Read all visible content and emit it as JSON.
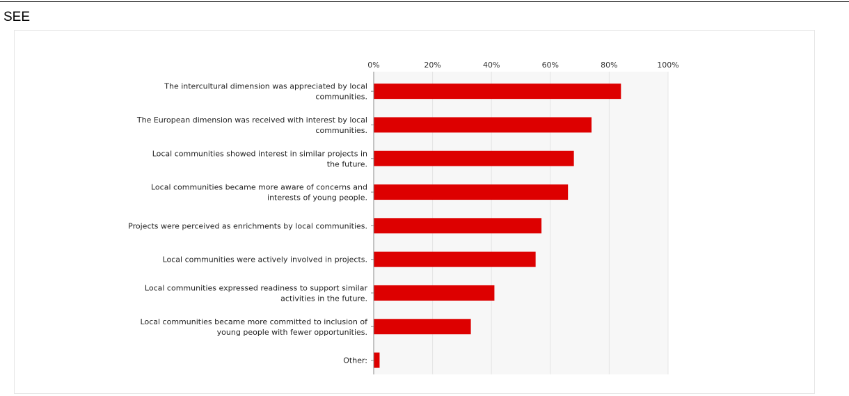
{
  "page": {
    "section_label": "SEE"
  },
  "chart_data": {
    "type": "bar",
    "orientation": "horizontal",
    "title": "",
    "xlabel": "",
    "ylabel": "",
    "xlim": [
      0,
      100
    ],
    "x_ticks": [
      "0%",
      "20%",
      "40%",
      "60%",
      "80%",
      "100%"
    ],
    "grid": true,
    "legend": "none",
    "bar_color": "#dd0000",
    "categories": [
      [
        "The intercultural dimension was appreciated by local",
        "communities."
      ],
      [
        "The European dimension was received with interest by local",
        "communities."
      ],
      [
        "Local communities showed interest in similar projects in",
        "the future."
      ],
      [
        "Local communities became more aware of concerns and",
        "interests of young people."
      ],
      [
        "Projects were perceived as enrichments by local communities."
      ],
      [
        "Local communities were actively involved in projects."
      ],
      [
        "Local communities expressed readiness to support similar",
        "activities in the future."
      ],
      [
        "Local communities became more committed to inclusion of",
        "young people with fewer opportunities."
      ],
      [
        "Other:"
      ]
    ],
    "values": [
      84,
      74,
      68,
      66,
      57,
      55,
      41,
      33,
      2
    ]
  }
}
